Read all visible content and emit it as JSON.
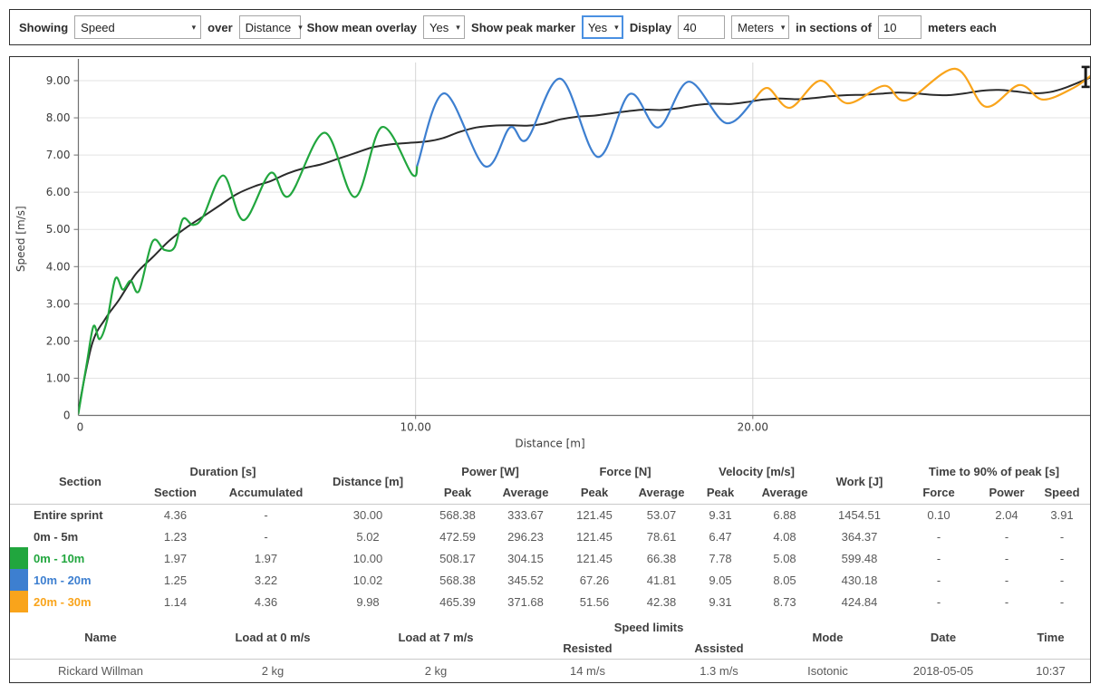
{
  "icons": {
    "dropdown_arrow": "▾"
  },
  "toolbar": {
    "showing_label": "Showing",
    "showing_value": "Speed",
    "over_label": "over",
    "over_value": "Distance",
    "mean_overlay_label": "Show mean overlay",
    "mean_overlay_value": "Yes",
    "peak_marker_label": "Show peak marker",
    "peak_marker_value": "Yes",
    "display_label": "Display",
    "display_value": "40",
    "display_unit_value": "Meters",
    "sections_label": "in sections of",
    "sections_value": "10",
    "sections_suffix": "meters each"
  },
  "chart_data": {
    "type": "line",
    "xlabel": "Distance [m]",
    "ylabel": "Speed [m/s]",
    "xlim": [
      0,
      30
    ],
    "ylim": [
      0,
      9.45
    ],
    "grid": {
      "horizontal_interval": 1.0,
      "vertical_gridlines_at": [
        10,
        20
      ]
    },
    "legend_position": "none",
    "x_ticks": [
      {
        "v": 0,
        "label": "0"
      },
      {
        "v": 10,
        "label": "10.00"
      },
      {
        "v": 20,
        "label": "20.00"
      }
    ],
    "y_ticks": [
      {
        "v": 0,
        "label": "0"
      },
      {
        "v": 1,
        "label": "1.00"
      },
      {
        "v": 2,
        "label": "2.00"
      },
      {
        "v": 3,
        "label": "3.00"
      },
      {
        "v": 4,
        "label": "4.00"
      },
      {
        "v": 5,
        "label": "5.00"
      },
      {
        "v": 6,
        "label": "6.00"
      },
      {
        "v": 7,
        "label": "7.00"
      },
      {
        "v": 8,
        "label": "8.00"
      },
      {
        "v": 9,
        "label": "9.00"
      }
    ],
    "peak_marker": {
      "x": 29.87,
      "y": 9.1
    },
    "series": [
      {
        "name": "mean overlay",
        "color": "#2b2b2b",
        "width": 2,
        "points": [
          [
            0,
            0.15
          ],
          [
            0.4,
            1.9
          ],
          [
            0.8,
            2.6
          ],
          [
            1.2,
            3.1
          ],
          [
            1.7,
            3.8
          ],
          [
            2.2,
            4.25
          ],
          [
            2.7,
            4.7
          ],
          [
            3.2,
            5.05
          ],
          [
            3.7,
            5.35
          ],
          [
            4.2,
            5.65
          ],
          [
            4.7,
            5.95
          ],
          [
            5.2,
            6.15
          ],
          [
            5.7,
            6.3
          ],
          [
            6.2,
            6.5
          ],
          [
            6.7,
            6.65
          ],
          [
            7.2,
            6.75
          ],
          [
            7.7,
            6.9
          ],
          [
            8.2,
            7.05
          ],
          [
            8.7,
            7.2
          ],
          [
            9.2,
            7.28
          ],
          [
            9.7,
            7.32
          ],
          [
            10.3,
            7.36
          ],
          [
            10.8,
            7.45
          ],
          [
            11.3,
            7.62
          ],
          [
            11.8,
            7.74
          ],
          [
            12.3,
            7.79
          ],
          [
            12.8,
            7.8
          ],
          [
            13.3,
            7.79
          ],
          [
            13.8,
            7.84
          ],
          [
            14.3,
            7.96
          ],
          [
            14.8,
            8.03
          ],
          [
            15.3,
            8.06
          ],
          [
            15.8,
            8.12
          ],
          [
            16.3,
            8.18
          ],
          [
            16.8,
            8.22
          ],
          [
            17.3,
            8.21
          ],
          [
            17.8,
            8.26
          ],
          [
            18.3,
            8.34
          ],
          [
            18.8,
            8.38
          ],
          [
            19.3,
            8.37
          ],
          [
            19.8,
            8.42
          ],
          [
            20.3,
            8.49
          ],
          [
            20.8,
            8.52
          ],
          [
            21.3,
            8.5
          ],
          [
            21.8,
            8.53
          ],
          [
            22.3,
            8.58
          ],
          [
            22.8,
            8.61
          ],
          [
            23.3,
            8.62
          ],
          [
            23.8,
            8.65
          ],
          [
            24.3,
            8.68
          ],
          [
            24.8,
            8.66
          ],
          [
            25.3,
            8.62
          ],
          [
            25.8,
            8.61
          ],
          [
            26.3,
            8.66
          ],
          [
            26.8,
            8.73
          ],
          [
            27.3,
            8.75
          ],
          [
            27.8,
            8.71
          ],
          [
            28.3,
            8.66
          ],
          [
            28.8,
            8.69
          ],
          [
            29.3,
            8.82
          ],
          [
            30,
            9.08
          ]
        ]
      },
      {
        "name": "0m - 10m",
        "color": "#21a63e",
        "width": 2.2,
        "points": [
          [
            0,
            0.05
          ],
          [
            0.25,
            1.4
          ],
          [
            0.45,
            2.4
          ],
          [
            0.63,
            2.05
          ],
          [
            0.85,
            2.55
          ],
          [
            1.1,
            3.68
          ],
          [
            1.32,
            3.38
          ],
          [
            1.55,
            3.62
          ],
          [
            1.8,
            3.35
          ],
          [
            2.2,
            4.68
          ],
          [
            2.55,
            4.45
          ],
          [
            2.85,
            4.52
          ],
          [
            3.1,
            5.28
          ],
          [
            3.4,
            5.12
          ],
          [
            3.7,
            5.35
          ],
          [
            4.3,
            6.45
          ],
          [
            4.9,
            5.25
          ],
          [
            5.7,
            6.52
          ],
          [
            6.25,
            5.9
          ],
          [
            7.3,
            7.6
          ],
          [
            8.2,
            5.87
          ],
          [
            9.0,
            7.75
          ],
          [
            9.9,
            6.48
          ],
          [
            10.05,
            6.72
          ]
        ]
      },
      {
        "name": "10m - 20m",
        "color": "#3d7fd0",
        "width": 2.2,
        "points": [
          [
            10.05,
            6.72
          ],
          [
            10.85,
            8.66
          ],
          [
            12.05,
            6.7
          ],
          [
            12.8,
            7.74
          ],
          [
            13.3,
            7.42
          ],
          [
            14.3,
            9.05
          ],
          [
            15.4,
            6.95
          ],
          [
            16.35,
            8.64
          ],
          [
            17.2,
            7.74
          ],
          [
            18.1,
            8.97
          ],
          [
            19.2,
            7.86
          ],
          [
            20.05,
            8.5
          ]
        ]
      },
      {
        "name": "20m - 30m",
        "color": "#f9a41b",
        "width": 2.2,
        "points": [
          [
            20.05,
            8.5
          ],
          [
            20.45,
            8.8
          ],
          [
            21.1,
            8.27
          ],
          [
            22.0,
            9.0
          ],
          [
            22.8,
            8.39
          ],
          [
            23.9,
            8.86
          ],
          [
            24.55,
            8.47
          ],
          [
            26.0,
            9.32
          ],
          [
            26.9,
            8.3
          ],
          [
            27.9,
            8.88
          ],
          [
            28.6,
            8.49
          ],
          [
            29.5,
            8.8
          ],
          [
            30,
            9.12
          ]
        ]
      }
    ]
  },
  "sections_table": {
    "headers": {
      "section": "Section",
      "duration_group": "Duration [s]",
      "duration_sub": [
        "Section",
        "Accumulated"
      ],
      "distance": "Distance [m]",
      "power_group": "Power [W]",
      "power_sub": [
        "Peak",
        "Average"
      ],
      "force_group": "Force [N]",
      "force_sub": [
        "Peak",
        "Average"
      ],
      "velocity_group": "Velocity [m/s]",
      "velocity_sub": [
        "Peak",
        "Average"
      ],
      "work": "Work [J]",
      "t90_group": "Time to 90% of peak [s]",
      "t90_sub": [
        "Force",
        "Power",
        "Speed"
      ]
    },
    "rows": [
      {
        "swatch": null,
        "color": null,
        "name": "Entire sprint",
        "values": [
          "4.36",
          "-",
          "30.00",
          "568.38",
          "333.67",
          "121.45",
          "53.07",
          "9.31",
          "6.88",
          "1454.51",
          "0.10",
          "2.04",
          "3.91"
        ]
      },
      {
        "swatch": null,
        "color": null,
        "name": "0m - 5m",
        "values": [
          "1.23",
          "-",
          "5.02",
          "472.59",
          "296.23",
          "121.45",
          "78.61",
          "6.47",
          "4.08",
          "364.37",
          "-",
          "-",
          "-"
        ]
      },
      {
        "swatch": "#21a63e",
        "color": "#21a63e",
        "name": "0m - 10m",
        "values": [
          "1.97",
          "1.97",
          "10.00",
          "508.17",
          "304.15",
          "121.45",
          "66.38",
          "7.78",
          "5.08",
          "599.48",
          "-",
          "-",
          "-"
        ]
      },
      {
        "swatch": "#3d7fd0",
        "color": "#3d7fd0",
        "name": "10m - 20m",
        "values": [
          "1.25",
          "3.22",
          "10.02",
          "568.38",
          "345.52",
          "67.26",
          "41.81",
          "9.05",
          "8.05",
          "430.18",
          "-",
          "-",
          "-"
        ]
      },
      {
        "swatch": "#f9a41b",
        "color": "#f9a41b",
        "name": "20m - 30m",
        "values": [
          "1.14",
          "4.36",
          "9.98",
          "465.39",
          "371.68",
          "51.56",
          "42.38",
          "9.31",
          "8.73",
          "424.84",
          "-",
          "-",
          "-"
        ]
      }
    ]
  },
  "info_table": {
    "headers": {
      "name": "Name",
      "load0": "Load at 0 m/s",
      "load7": "Load at 7 m/s",
      "speed_limits_group": "Speed limits",
      "speed_limits_sub": [
        "Resisted",
        "Assisted"
      ],
      "mode": "Mode",
      "date": "Date",
      "time": "Time"
    },
    "row": [
      "Rickard Willman",
      "2 kg",
      "2 kg",
      "14 m/s",
      "1.3 m/s",
      "Isotonic",
      "2018-05-05",
      "10:37"
    ]
  }
}
